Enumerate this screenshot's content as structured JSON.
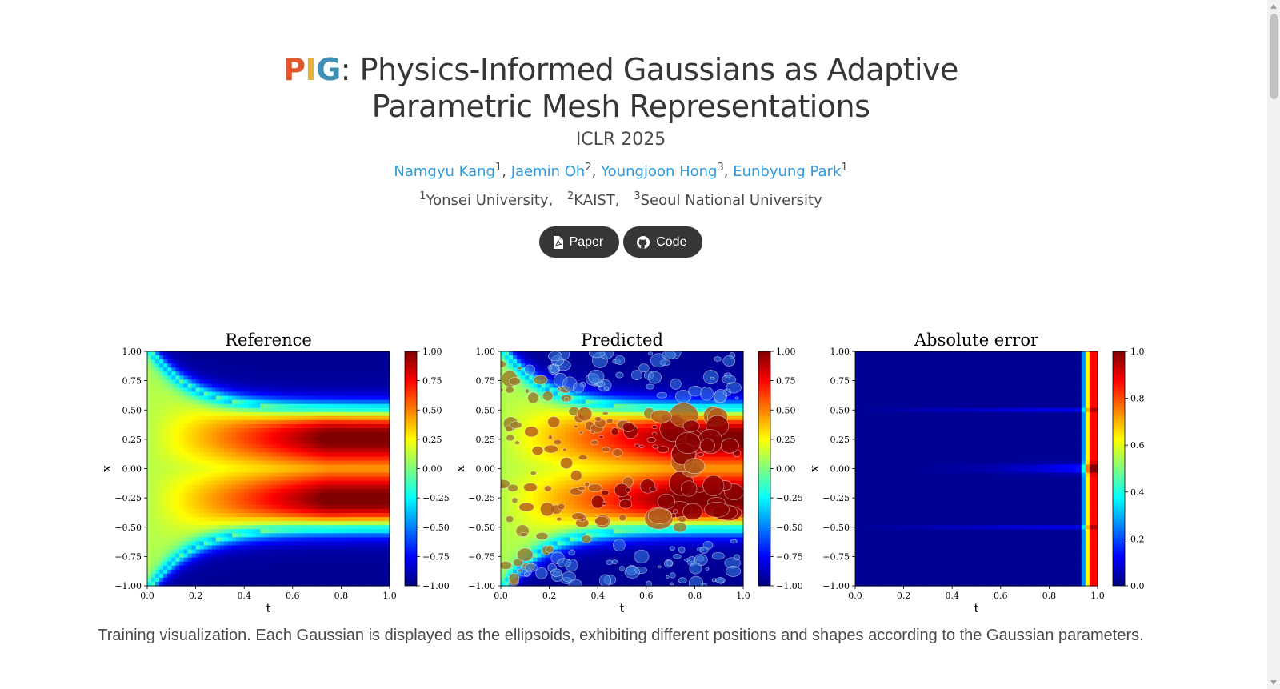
{
  "header": {
    "title_brand": [
      "P",
      "I",
      "G"
    ],
    "title_brand_colors": [
      "#e0582c",
      "#e8b23a",
      "#3d8fb5"
    ],
    "title_line1_rest": ": Physics-Informed Gaussians as Adaptive",
    "title_line2": "Parametric Mesh Representations",
    "venue": "ICLR 2025"
  },
  "authors": [
    {
      "name": "Namgyu Kang",
      "aff": "1"
    },
    {
      "name": "Jaemin Oh",
      "aff": "2"
    },
    {
      "name": "Youngjoon Hong",
      "aff": "3"
    },
    {
      "name": "Eunbyung Park",
      "aff": "1"
    }
  ],
  "affiliations": [
    {
      "num": "1",
      "name": "Yonsei University,"
    },
    {
      "num": "2",
      "name": "KAIST,"
    },
    {
      "num": "3",
      "name": "Seoul National University"
    }
  ],
  "buttons": {
    "paper_label": "Paper",
    "code_label": "Code",
    "paper_icon": "file-pdf-icon",
    "code_icon": "github-icon"
  },
  "chart_data": [
    {
      "type": "heatmap",
      "title": "Reference",
      "xlabel": "t",
      "ylabel": "x",
      "xlim": [
        0.0,
        1.0
      ],
      "ylim": [
        -1.0,
        1.0
      ],
      "x_ticks": [
        "0.0",
        "0.2",
        "0.4",
        "0.6",
        "0.8",
        "1.0"
      ],
      "y_ticks": [
        "1.00",
        "0.75",
        "0.50",
        "0.25",
        "0.00",
        "−0.25",
        "−0.50",
        "−0.75",
        "−1.00"
      ],
      "colorbar_range": [
        -1.0,
        1.0
      ],
      "colorbar_ticks": [
        "1.00",
        "0.75",
        "0.50",
        "0.25",
        "0.00",
        "−0.25",
        "−0.50",
        "−0.75",
        "−1.00"
      ],
      "colormap": "jet"
    },
    {
      "type": "heatmap",
      "title": "Predicted",
      "xlabel": "t",
      "ylabel": "x",
      "xlim": [
        0.0,
        1.0
      ],
      "ylim": [
        -1.0,
        1.0
      ],
      "x_ticks": [
        "0.0",
        "0.2",
        "0.4",
        "0.6",
        "0.8",
        "1.0"
      ],
      "y_ticks": [
        "1.00",
        "0.75",
        "0.50",
        "0.25",
        "0.00",
        "−0.25",
        "−0.50",
        "−0.75",
        "−1.00"
      ],
      "colorbar_range": [
        -1.0,
        1.0
      ],
      "colorbar_ticks": [
        "1.00",
        "0.75",
        "0.50",
        "0.25",
        "0.00",
        "−0.25",
        "−0.50",
        "−0.75",
        "−1.00"
      ],
      "colormap": "jet",
      "overlay": "gaussian-ellipses"
    },
    {
      "type": "heatmap",
      "title": "Absolute error",
      "xlabel": "t",
      "ylabel": "x",
      "xlim": [
        0.0,
        1.0
      ],
      "ylim": [
        -1.0,
        1.0
      ],
      "x_ticks": [
        "0.0",
        "0.2",
        "0.4",
        "0.6",
        "0.8",
        "1.0"
      ],
      "y_ticks": [
        "1.00",
        "0.75",
        "0.50",
        "0.25",
        "0.00",
        "−0.25",
        "−0.50",
        "−0.75",
        "−1.00"
      ],
      "colorbar_range": [
        0.0,
        1.0
      ],
      "colorbar_ticks": [
        "1.0",
        "0.8",
        "0.6",
        "0.4",
        "0.2",
        "0.0"
      ],
      "colormap": "jet"
    }
  ],
  "caption": "Training visualization. Each Gaussian is displayed as the ellipsoids, exhibiting different positions and shapes according to the Gaussian parameters."
}
